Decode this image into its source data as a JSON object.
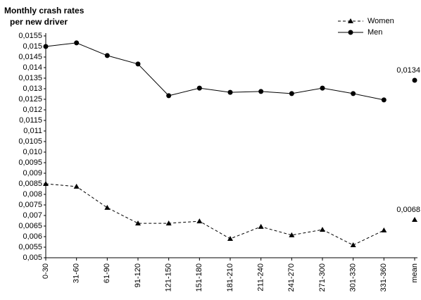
{
  "chart_data": {
    "type": "line",
    "title": "Monthly crash rates",
    "subtitle": "per new driver",
    "categories": [
      "0-30",
      "31-60",
      "61-90",
      "91-120",
      "121-150",
      "151-180",
      "181-210",
      "211-240",
      "241-270",
      "271-300",
      "301-330",
      "331-360",
      "mean"
    ],
    "series": [
      {
        "name": "Women",
        "color": "#000",
        "dash": true,
        "marker": "triangle",
        "values": [
          0.0085,
          0.00837,
          0.00737,
          0.00663,
          0.00663,
          0.00673,
          0.0059,
          0.00647,
          0.00607,
          0.00633,
          0.0056,
          0.0063,
          null
        ],
        "mean": 0.0068,
        "mean_label": "0,0068"
      },
      {
        "name": "Men",
        "color": "#000",
        "dash": false,
        "marker": "circle",
        "values": [
          0.015,
          0.01517,
          0.01457,
          0.01417,
          0.01267,
          0.01303,
          0.01283,
          0.01287,
          0.01277,
          0.01303,
          0.01277,
          0.01247,
          null
        ],
        "mean": 0.0134,
        "mean_label": "0,0134"
      }
    ],
    "ylim": [
      0.005,
      0.0155
    ],
    "yticks": [
      {
        "value": 0.005,
        "label": "0,005"
      },
      {
        "value": 0.0055,
        "label": "0,0055"
      },
      {
        "value": 0.006,
        "label": "0,006"
      },
      {
        "value": 0.0065,
        "label": "0,0065"
      },
      {
        "value": 0.007,
        "label": "0,007"
      },
      {
        "value": 0.0075,
        "label": "0,0075"
      },
      {
        "value": 0.008,
        "label": "0,008"
      },
      {
        "value": 0.0085,
        "label": "0,0085"
      },
      {
        "value": 0.009,
        "label": "0,009"
      },
      {
        "value": 0.0095,
        "label": "0,0095"
      },
      {
        "value": 0.01,
        "label": "0,010"
      },
      {
        "value": 0.0105,
        "label": "0,0105"
      },
      {
        "value": 0.011,
        "label": "0,011"
      },
      {
        "value": 0.0115,
        "label": "0,0115"
      },
      {
        "value": 0.012,
        "label": "0,012"
      },
      {
        "value": 0.0125,
        "label": "0,0125"
      },
      {
        "value": 0.013,
        "label": "0,013"
      },
      {
        "value": 0.0135,
        "label": "0,0135"
      },
      {
        "value": 0.014,
        "label": "0,014"
      },
      {
        "value": 0.0145,
        "label": "0,0145"
      },
      {
        "value": 0.015,
        "label": "0,015"
      },
      {
        "value": 0.0155,
        "label": "0,0155"
      }
    ],
    "legend": "top-right"
  }
}
